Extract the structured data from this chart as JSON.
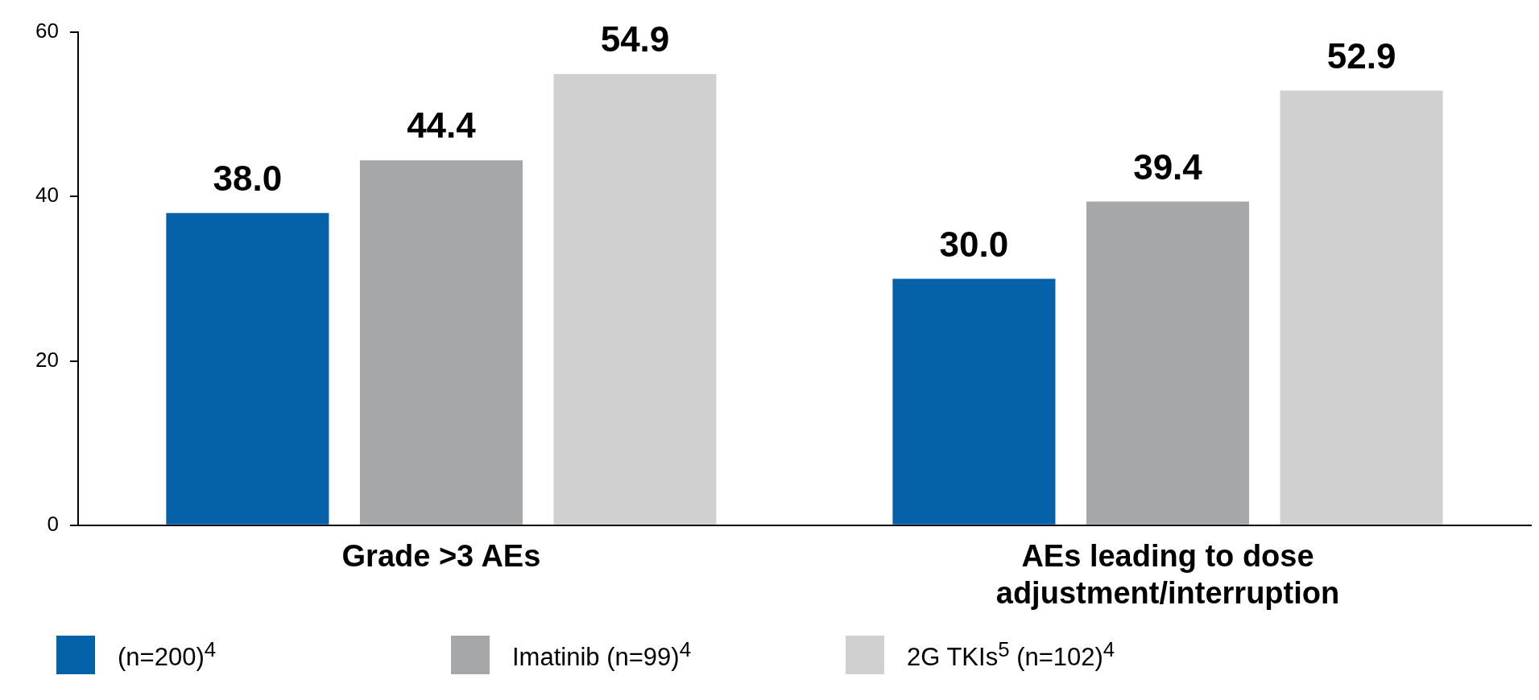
{
  "chart_data": {
    "type": "bar",
    "categories": [
      "Grade >3 AEs",
      "AEs leading to dose adjustment/interruption"
    ],
    "series": [
      {
        "name": "(n=200)$^{4}$",
        "color": "#0561a8",
        "values": [
          38.0,
          30.0
        ],
        "value_labels": [
          "38.0",
          "30.0"
        ]
      },
      {
        "name": "Imatinib (n=99)$^{4}$",
        "color": "#a6a7a9",
        "values": [
          44.4,
          39.4
        ],
        "value_labels": [
          "44.4",
          "39.4"
        ]
      },
      {
        "name": "2G TKIs$^{5}$ (n=102)$^{4}$",
        "color": "#d0d0d0",
        "values": [
          54.9,
          52.9
        ],
        "value_labels": [
          "54.9",
          "52.9"
        ]
      }
    ],
    "ylim": [
      0,
      60
    ],
    "yticks": [
      0,
      20,
      40,
      60
    ],
    "grid": false,
    "legend": "bottom"
  }
}
